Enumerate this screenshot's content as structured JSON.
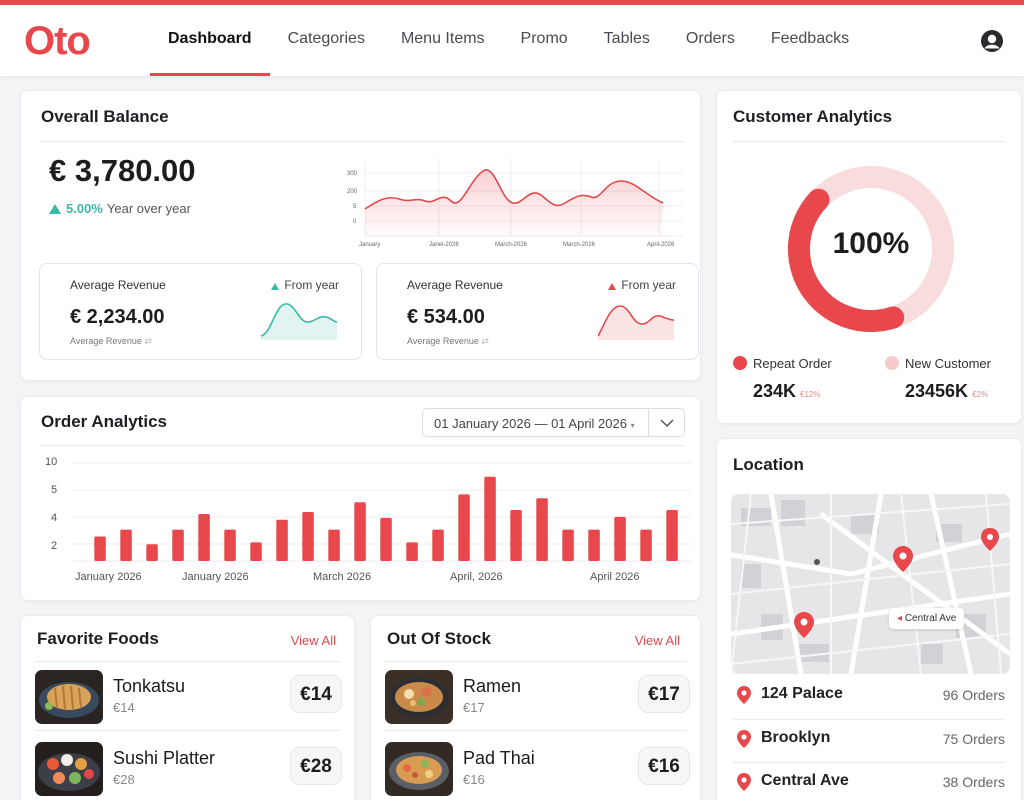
{
  "brand": {
    "logo": "Oto",
    "accent": "#e14a4f"
  },
  "nav": {
    "items": [
      {
        "label": "Dashboard",
        "active": true
      },
      {
        "label": "Categories",
        "active": false
      },
      {
        "label": "Menu Items",
        "active": false
      },
      {
        "label": "Promo",
        "active": false
      },
      {
        "label": "Tables",
        "active": false
      },
      {
        "label": "Orders",
        "active": false
      },
      {
        "label": "Feedbacks",
        "active": false
      }
    ],
    "user_icon": "user-icon"
  },
  "balance": {
    "title": "Overall Balance",
    "amount": "€ 3,780.00",
    "change_pct": "5.00%",
    "change_label": "Year over year",
    "chart": {
      "y_ticks": [
        "300",
        "200",
        "5",
        "0"
      ],
      "x_ticks": [
        "January",
        "Janel-2026",
        "March-2026",
        "March-2026",
        "April-2026"
      ]
    },
    "cards": [
      {
        "label": "Average Revenue",
        "amount": "€ 2,234.00",
        "caption": "Average Revenue",
        "from": "From year",
        "trend_color": "#3bb8a6"
      },
      {
        "label": "Average Revenue",
        "amount": "€ 534.00",
        "caption": "Average Revenue",
        "from": "From year",
        "trend_color": "#e8474c"
      }
    ]
  },
  "customer": {
    "title": "Customer Analytics",
    "center_value": "100%",
    "repeat_fraction": 0.42,
    "legend": [
      {
        "label": "Repeat Order",
        "value": "234K",
        "delta": "€12%",
        "color": "#e8474c"
      },
      {
        "label": "New Customer",
        "value": "23456K",
        "delta": "€2%",
        "color": "#f6c9ca"
      }
    ]
  },
  "orders": {
    "title": "Order Analytics",
    "date_range": "01 January 2026 — 01 April 2026",
    "chevron_icon": "chevron-down-icon"
  },
  "chart_data": {
    "type": "bar",
    "categories": [
      "1",
      "2",
      "3",
      "4",
      "5",
      "6",
      "7",
      "8",
      "9",
      "10",
      "11",
      "12",
      "13",
      "14",
      "15",
      "16",
      "17",
      "18",
      "19",
      "20",
      "21",
      "22",
      "23"
    ],
    "values": [
      2.5,
      3.2,
      1.7,
      3.2,
      4.8,
      3.2,
      1.9,
      4.2,
      5.0,
      3.2,
      6.0,
      4.4,
      1.9,
      3.2,
      6.8,
      8.6,
      5.2,
      6.4,
      3.2,
      3.2,
      4.5,
      3.2,
      5.2
    ],
    "y_ticks": [
      "10",
      "5",
      "4",
      "2"
    ],
    "x_ticks": [
      "January 2026",
      "January 2026",
      "March 2026",
      "April, 2026",
      "April 2026"
    ],
    "grid": true,
    "bar_color": "#e8474c"
  },
  "favorite": {
    "title": "Favorite Foods",
    "view_all": "View All",
    "items": [
      {
        "name": "Tonkatsu",
        "sub": "€14",
        "price": "€14"
      },
      {
        "name": "Sushi Platter",
        "sub": "€28",
        "price": "€28"
      }
    ]
  },
  "out_of_stock": {
    "title": "Out Of Stock",
    "view_all": "View All",
    "items": [
      {
        "name": "Ramen",
        "sub": "€17",
        "price": "€17"
      },
      {
        "name": "Pad Thai",
        "sub": "€16",
        "price": "€16"
      }
    ]
  },
  "location": {
    "title": "Location",
    "map_tag": "Central Ave",
    "items": [
      {
        "name": "124 Palace",
        "count": "96 Orders"
      },
      {
        "name": "Brooklyn",
        "count": "75 Orders"
      },
      {
        "name": "Central Ave",
        "count": "38 Orders"
      }
    ]
  }
}
